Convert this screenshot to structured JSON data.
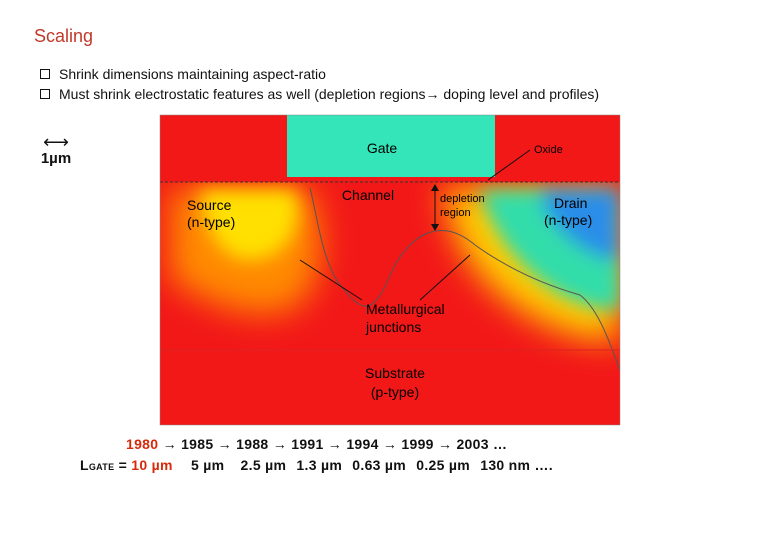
{
  "title": "Scaling",
  "bullets": [
    "Shrink dimensions maintaining aspect-ratio",
    "Must shrink electrostatic features as well (depletion regions→ doping level and profiles)"
  ],
  "scale": {
    "arrow": "⟷",
    "label": "1µm"
  },
  "diagram": {
    "gate": "Gate",
    "oxide": "Oxide",
    "channel": "Channel",
    "source_1": "Source",
    "source_2": "(n-type)",
    "drain_1": "Drain",
    "drain_2": "(n-type)",
    "depletion_1": "depletion",
    "depletion_2": "region",
    "junction_1": "Metallurgical",
    "junction_2": "junctions",
    "substrate_1": "Substrate",
    "substrate_2": "(p-type)"
  },
  "timeline": {
    "years": [
      "1980",
      "→",
      "1985",
      "→",
      "1988",
      "→",
      "1991",
      "→",
      "1994",
      "→",
      "1999",
      "→",
      "2003",
      "…"
    ],
    "lgate_prefix": "L",
    "lgate_sub": "GATE",
    "lgate_eq": " = ",
    "lengths": [
      "10 µm",
      "5 µm",
      "2.5 µm",
      "1.3 µm",
      "0.63 µm",
      "0.25 µm",
      "130 nm",
      "…."
    ]
  },
  "colors": {
    "title": "#c0392b",
    "highlight": "#d62a0a",
    "gate": "#33e5b8",
    "substrate": "#f21818"
  }
}
